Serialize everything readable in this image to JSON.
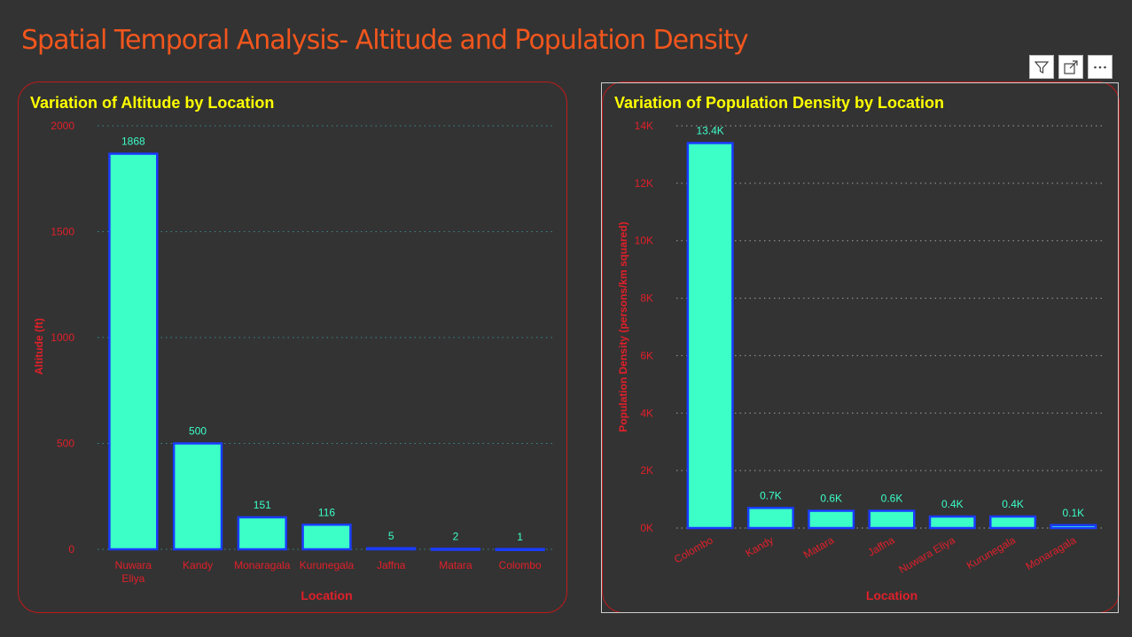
{
  "page": {
    "title": "Spatial Temporal Analysis- Altitude and Population Density"
  },
  "colors": {
    "background": "#333333",
    "title": "#F2561D",
    "card_title": "#FFFF00",
    "bar_fill": "#3CFFC8",
    "bar_border": "#1A3CFF",
    "axis_text": "#E0202A",
    "data_label": "#3CFFC8",
    "card_border": "#C0191C"
  },
  "toolbar": {
    "icons": [
      "filter-icon",
      "focus-mode-icon",
      "more-options-icon"
    ]
  },
  "chart_data": [
    {
      "type": "bar",
      "title": "Variation of Altitude by Location",
      "xlabel": "Location",
      "ylabel": "Altitude (ft)",
      "categories": [
        "Nuwara Eliya",
        "Kandy",
        "Monaragala",
        "Kurunegala",
        "Jaffna",
        "Matara",
        "Colombo"
      ],
      "category_lines": [
        [
          "Nuwara",
          "Eliya"
        ],
        [
          "Kandy"
        ],
        [
          "Monaragala"
        ],
        [
          "Kurunegala"
        ],
        [
          "Jaffna"
        ],
        [
          "Matara"
        ],
        [
          "Colombo"
        ]
      ],
      "values": [
        1868,
        500,
        151,
        116,
        5,
        2,
        1
      ],
      "data_labels": [
        "1868",
        "500",
        "151",
        "116",
        "5",
        "2",
        "1"
      ],
      "ylim": [
        0,
        2000
      ],
      "yticks": [
        0,
        500,
        1000,
        1500,
        2000
      ],
      "ytick_labels": [
        "0",
        "500",
        "1000",
        "1500",
        "2000"
      ],
      "grid": true,
      "legend": "none"
    },
    {
      "type": "bar",
      "title": "Variation of Population Density by Location",
      "xlabel": "Location",
      "ylabel": "Population Density (persons/km squared)",
      "categories": [
        "Colombo",
        "Kandy",
        "Matara",
        "Jaffna",
        "Nuwara Eliya",
        "Kurunegala",
        "Monaragala"
      ],
      "values": [
        13400,
        700,
        600,
        600,
        400,
        400,
        100
      ],
      "data_labels": [
        "13.4K",
        "0.7K",
        "0.6K",
        "0.6K",
        "0.4K",
        "0.4K",
        "0.1K"
      ],
      "ylim": [
        0,
        14000
      ],
      "yticks": [
        0,
        2000,
        4000,
        6000,
        8000,
        10000,
        12000,
        14000
      ],
      "ytick_labels": [
        "0K",
        "2K",
        "4K",
        "6K",
        "8K",
        "10K",
        "12K",
        "14K"
      ],
      "grid": true,
      "legend": "none",
      "x_label_rotation": "-30"
    }
  ]
}
